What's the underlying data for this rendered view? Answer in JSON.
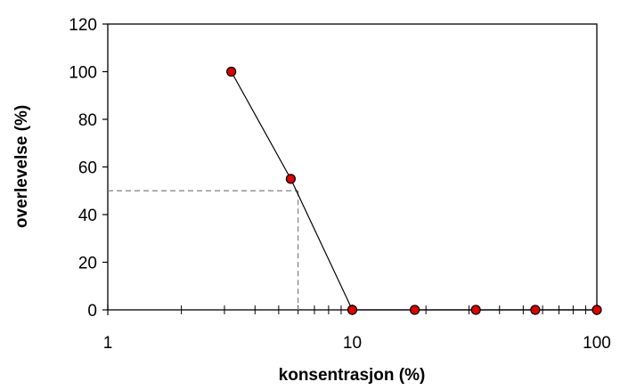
{
  "chart_data": {
    "type": "line",
    "xlabel": "konsentrasjon (%)",
    "ylabel": "overlevelse (%)",
    "x_scale": "log",
    "xlim": [
      1,
      100
    ],
    "ylim": [
      0,
      120
    ],
    "x_ticks": [
      1,
      10,
      100
    ],
    "x_tick_labels": [
      "1",
      "10",
      "100"
    ],
    "y_ticks": [
      0,
      20,
      40,
      60,
      80,
      100,
      120
    ],
    "y_tick_labels": [
      "0",
      "20",
      "40",
      "60",
      "80",
      "100",
      "120"
    ],
    "grid": false,
    "legend": "none",
    "series": [
      {
        "x": [
          3.2,
          5.6,
          10,
          18,
          32,
          56,
          100
        ],
        "y": [
          100,
          55,
          0,
          0,
          0,
          0,
          0
        ],
        "marker": "circle",
        "marker_color": "#e00000",
        "line_color": "#000000"
      }
    ],
    "annotations": [
      {
        "type": "dashed-reference",
        "x": 6.0,
        "y": 50,
        "color": "#808080"
      }
    ]
  }
}
